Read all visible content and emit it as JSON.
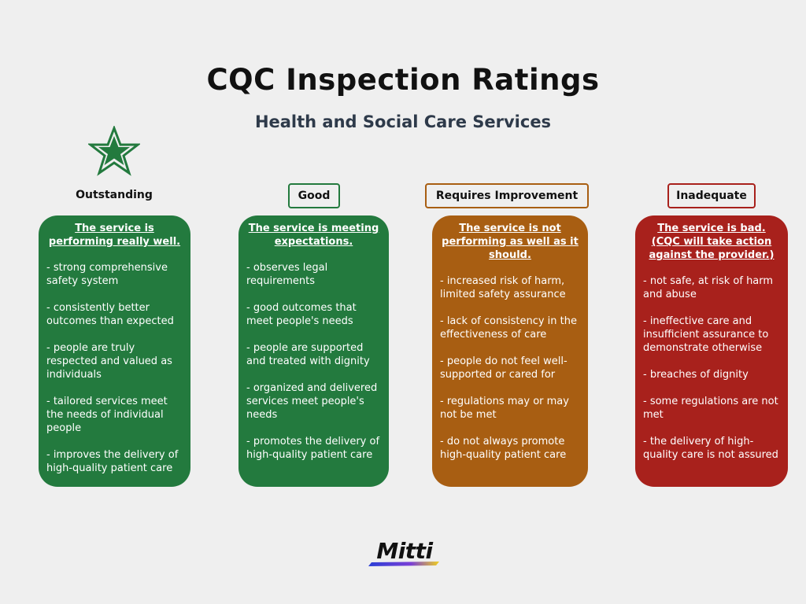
{
  "header": {
    "title": "CQC Inspection Ratings",
    "subtitle": "Health and Social Care Services"
  },
  "ratings": [
    {
      "label": "Outstanding",
      "icon": "star-icon",
      "color": "#237a3e",
      "heading": "The service is performing really well.",
      "points": [
        "- strong comprehensive safety system",
        "- consistently better outcomes than expected",
        "- people are truly respected and valued as individuals",
        "- tailored services meet the needs of individual people",
        "- improves the delivery of high-quality patient care"
      ]
    },
    {
      "label": "Good",
      "color": "#237a3e",
      "heading": "The service is meeting expectations.",
      "points": [
        "- observes legal requirements",
        "- good outcomes that meet people's needs",
        "- people are supported and treated with dignity",
        "- organized and delivered services meet people's needs",
        "- promotes the delivery of high-quality patient care"
      ]
    },
    {
      "label": "Requires Improvement",
      "color": "#a85e12",
      "heading": "The service is not performing as well as it should.",
      "points": [
        "- increased risk of harm, limited safety assurance",
        "- lack of consistency in the effectiveness of care",
        "- people do not feel well-supported or cared for",
        "- regulations may or may not be met",
        "- do not always promote high-quality patient care"
      ]
    },
    {
      "label": "Inadequate",
      "color": "#a8211c",
      "heading": "The service is bad. (CQC will take action against the provider.)",
      "points": [
        "- not safe, at risk of harm and abuse",
        "- ineffective care and insufficient assurance to demonstrate otherwise",
        "- breaches of dignity",
        "- some regulations are not met",
        "- the delivery of high-quality care is not assured"
      ]
    }
  ],
  "footer": {
    "logo_text": "Mitti",
    "logo_colors": [
      "#2a3fd6",
      "#7a3fd6",
      "#f0d020"
    ]
  }
}
